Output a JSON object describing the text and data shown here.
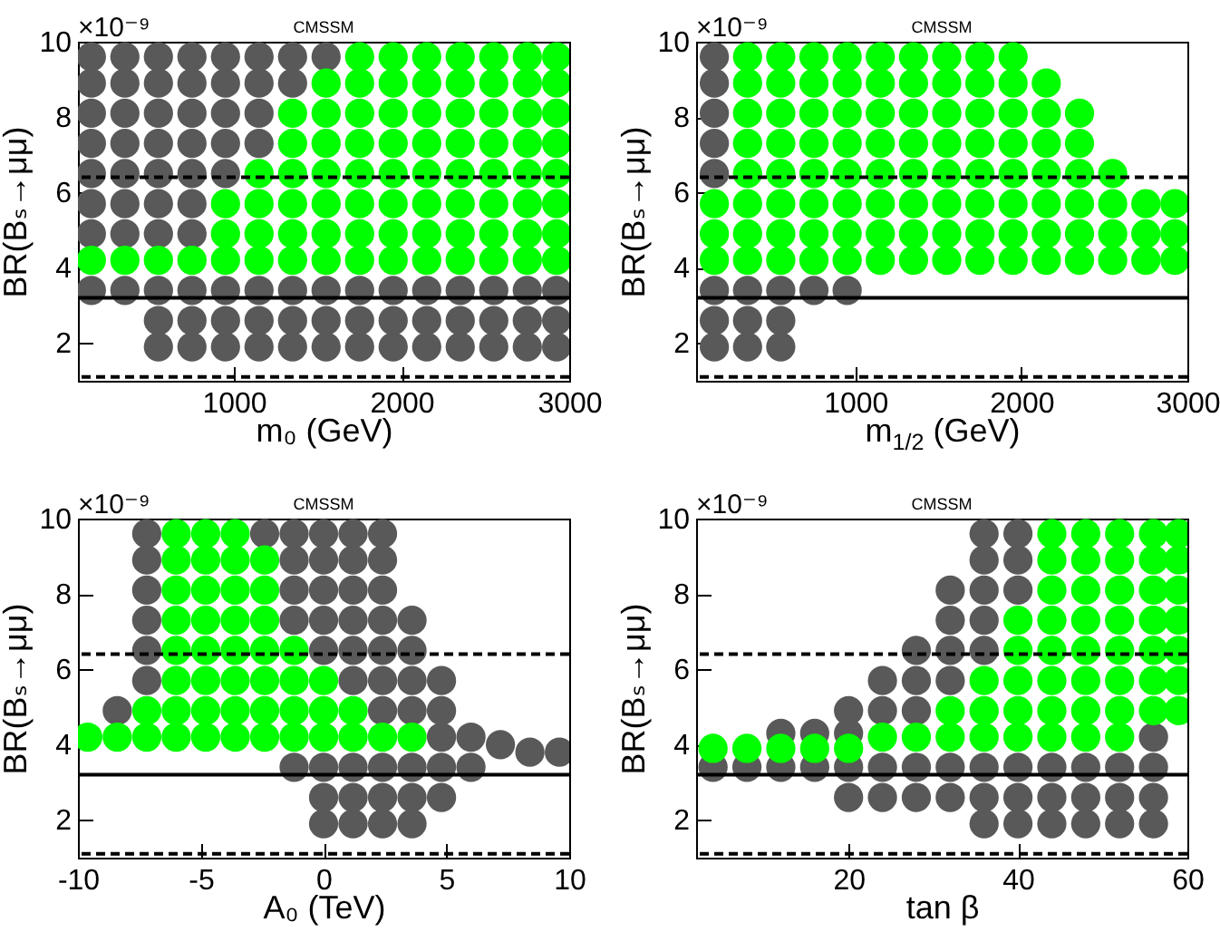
{
  "chart_data": [
    {
      "type": "scatter",
      "title": "CMSSM",
      "xlabel": "m₀ (GeV)",
      "ylabel": "BR(Bₛ→μμ)",
      "annotations": [
        "×10⁻⁹"
      ],
      "marker": "circle",
      "xlim": [
        70,
        3000
      ],
      "xticks": [
        1000,
        2000,
        3000
      ],
      "ylim": [
        1,
        10
      ],
      "yticks": [
        2,
        4,
        6,
        8,
        10
      ],
      "series": [
        {
          "color": "#595959",
          "x": [
            550,
            750,
            950,
            1150,
            1350,
            1550,
            1750,
            1950,
            2150,
            2350,
            2550,
            2750,
            2925,
            550,
            750,
            950,
            1150,
            1350,
            1550,
            1750,
            1950,
            2150,
            2350,
            2550,
            2750,
            2925,
            150,
            350,
            550,
            750,
            950,
            1150,
            1350,
            1550,
            1750,
            1950,
            2150,
            2350,
            2550,
            2750,
            2925,
            150,
            350,
            550,
            750,
            150,
            350,
            550,
            750,
            150,
            350,
            550,
            750,
            950,
            150,
            350,
            550,
            750,
            950,
            1150,
            150,
            350,
            550,
            750,
            950,
            1150,
            150,
            350,
            550,
            750,
            950,
            1150,
            1350,
            150,
            350,
            550,
            750,
            950,
            1150,
            1350,
            1550
          ],
          "values": [
            1.9,
            1.9,
            1.9,
            1.9,
            1.9,
            1.9,
            1.9,
            1.9,
            1.9,
            1.9,
            1.9,
            1.9,
            1.9,
            2.6,
            2.6,
            2.6,
            2.6,
            2.6,
            2.6,
            2.6,
            2.6,
            2.6,
            2.6,
            2.6,
            2.6,
            2.6,
            3.4,
            3.4,
            3.4,
            3.4,
            3.4,
            3.4,
            3.4,
            3.4,
            3.4,
            3.4,
            3.4,
            3.4,
            3.4,
            3.4,
            3.4,
            4.9,
            4.9,
            4.9,
            4.9,
            5.7,
            5.7,
            5.7,
            5.7,
            6.5,
            6.5,
            6.5,
            6.5,
            6.5,
            7.3,
            7.3,
            7.3,
            7.3,
            7.3,
            7.3,
            8.1,
            8.1,
            8.1,
            8.1,
            8.1,
            8.1,
            8.9,
            8.9,
            8.9,
            8.9,
            8.9,
            8.9,
            8.9,
            9.6,
            9.6,
            9.6,
            9.6,
            9.6,
            9.6,
            9.6,
            9.6
          ]
        },
        {
          "color": "#00ff00",
          "x": [
            150,
            350,
            550,
            750,
            950,
            1150,
            1350,
            1550,
            1750,
            1950,
            2150,
            2350,
            2550,
            2750,
            2925,
            950,
            1150,
            1350,
            1550,
            1750,
            1950,
            2150,
            2350,
            2550,
            2750,
            2925,
            950,
            1150,
            1350,
            1550,
            1750,
            1950,
            2150,
            2350,
            2550,
            2750,
            2925,
            1150,
            1350,
            1550,
            1750,
            1950,
            2150,
            2350,
            2550,
            2750,
            2925,
            1350,
            1550,
            1750,
            1950,
            2150,
            2350,
            2550,
            2750,
            2925,
            1350,
            1550,
            1750,
            1950,
            2150,
            2350,
            2550,
            2750,
            2925,
            1550,
            1750,
            1950,
            2150,
            2350,
            2550,
            2750,
            2925,
            1750,
            1950,
            2150,
            2350,
            2550,
            2750,
            2925
          ],
          "values": [
            4.2,
            4.2,
            4.2,
            4.2,
            4.2,
            4.2,
            4.2,
            4.2,
            4.2,
            4.2,
            4.2,
            4.2,
            4.2,
            4.2,
            4.2,
            4.9,
            4.9,
            4.9,
            4.9,
            4.9,
            4.9,
            4.9,
            4.9,
            4.9,
            4.9,
            4.9,
            5.7,
            5.7,
            5.7,
            5.7,
            5.7,
            5.7,
            5.7,
            5.7,
            5.7,
            5.7,
            5.7,
            6.5,
            6.5,
            6.5,
            6.5,
            6.5,
            6.5,
            6.5,
            6.5,
            6.5,
            6.5,
            7.3,
            7.3,
            7.3,
            7.3,
            7.3,
            7.3,
            7.3,
            7.3,
            7.3,
            8.1,
            8.1,
            8.1,
            8.1,
            8.1,
            8.1,
            8.1,
            8.1,
            8.1,
            8.9,
            8.9,
            8.9,
            8.9,
            8.9,
            8.9,
            8.9,
            8.9,
            9.6,
            9.6,
            9.6,
            9.6,
            9.6,
            9.6,
            9.6
          ]
        }
      ],
      "ref_lines": [
        {
          "axis": "y",
          "value": 6.4,
          "color": "#000000",
          "line_style": "dashed"
        },
        {
          "axis": "y",
          "value": 3.2,
          "color": "#000000",
          "line_style": "solid"
        },
        {
          "axis": "y",
          "value": 1.1,
          "color": "#000000",
          "line_style": "dashed"
        }
      ]
    },
    {
      "type": "scatter",
      "title": "CMSSM",
      "xlabel": "m$_{1/2}$ (GeV)",
      "ylabel": "BR(Bₛ→μμ)",
      "annotations": [
        "×10⁻⁹"
      ],
      "marker": "circle",
      "xlim": [
        40,
        3000
      ],
      "xticks": [
        1000,
        2000,
        3000
      ],
      "ylim": [
        1,
        10
      ],
      "yticks": [
        2,
        4,
        6,
        8,
        10
      ],
      "series": [
        {
          "color": "#595959",
          "x": [
            150,
            350,
            550,
            150,
            350,
            550,
            150,
            350,
            550,
            750,
            950,
            150,
            150,
            150,
            150,
            150
          ],
          "values": [
            1.9,
            1.9,
            1.9,
            2.6,
            2.6,
            2.6,
            3.4,
            3.4,
            3.4,
            3.4,
            3.4,
            6.5,
            7.3,
            8.1,
            8.9,
            9.6
          ]
        },
        {
          "color": "#00ff00",
          "x": [
            150,
            350,
            550,
            750,
            950,
            1150,
            1350,
            1550,
            1750,
            1950,
            2150,
            2350,
            2550,
            2750,
            2925,
            150,
            350,
            550,
            750,
            950,
            1150,
            1350,
            1550,
            1750,
            1950,
            2150,
            2350,
            2550,
            2750,
            2925,
            150,
            350,
            550,
            750,
            950,
            1150,
            1350,
            1550,
            1750,
            1950,
            2150,
            2350,
            2550,
            2750,
            2925,
            350,
            550,
            750,
            950,
            1150,
            1350,
            1550,
            1750,
            1950,
            2150,
            2350,
            2550,
            350,
            550,
            750,
            950,
            1150,
            1350,
            1550,
            1750,
            1950,
            2150,
            2350,
            350,
            550,
            750,
            950,
            1150,
            1350,
            1550,
            1750,
            1950,
            2150,
            2350,
            350,
            550,
            750,
            950,
            1150,
            1350,
            1550,
            1750,
            1950,
            2150,
            350,
            550,
            750,
            950,
            1150,
            1350,
            1550,
            1750,
            1950
          ],
          "values": [
            4.2,
            4.2,
            4.2,
            4.2,
            4.2,
            4.2,
            4.2,
            4.2,
            4.2,
            4.2,
            4.2,
            4.2,
            4.2,
            4.2,
            4.2,
            4.9,
            4.9,
            4.9,
            4.9,
            4.9,
            4.9,
            4.9,
            4.9,
            4.9,
            4.9,
            4.9,
            4.9,
            4.9,
            4.9,
            4.9,
            5.7,
            5.7,
            5.7,
            5.7,
            5.7,
            5.7,
            5.7,
            5.7,
            5.7,
            5.7,
            5.7,
            5.7,
            5.7,
            5.7,
            5.7,
            6.5,
            6.5,
            6.5,
            6.5,
            6.5,
            6.5,
            6.5,
            6.5,
            6.5,
            6.5,
            6.5,
            6.5,
            7.3,
            7.3,
            7.3,
            7.3,
            7.3,
            7.3,
            7.3,
            7.3,
            7.3,
            7.3,
            7.3,
            8.1,
            8.1,
            8.1,
            8.1,
            8.1,
            8.1,
            8.1,
            8.1,
            8.1,
            8.1,
            8.1,
            8.9,
            8.9,
            8.9,
            8.9,
            8.9,
            8.9,
            8.9,
            8.9,
            8.9,
            8.9,
            9.6,
            9.6,
            9.6,
            9.6,
            9.6,
            9.6,
            9.6,
            9.6,
            9.6
          ]
        }
      ],
      "ref_lines": [
        {
          "axis": "y",
          "value": 6.4,
          "color": "#000000",
          "line_style": "dashed"
        },
        {
          "axis": "y",
          "value": 3.2,
          "color": "#000000",
          "line_style": "solid"
        },
        {
          "axis": "y",
          "value": 1.1,
          "color": "#000000",
          "line_style": "dashed"
        }
      ]
    },
    {
      "type": "scatter",
      "title": "CMSSM",
      "xlabel": "A₀ (TeV)",
      "ylabel": "BR(Bₛ→μμ)",
      "annotations": [
        "×10⁻⁹"
      ],
      "marker": "circle",
      "xlim": [
        -10,
        10
      ],
      "xticks": [
        -10,
        -5,
        0,
        5,
        10
      ],
      "ylim": [
        1,
        10
      ],
      "yticks": [
        2,
        4,
        6,
        8,
        10
      ],
      "series": [
        {
          "color": "#595959",
          "x": [
            0,
            1.2,
            2.4,
            3.6,
            0,
            1.2,
            2.4,
            3.6,
            4.8,
            -1.2,
            0,
            1.2,
            2.4,
            3.6,
            4.8,
            6,
            8.4,
            9.6,
            7.2,
            4.8,
            6,
            -8.4,
            2.4,
            3.6,
            4.8,
            -7.2,
            1.2,
            2.4,
            3.6,
            4.8,
            -7.2,
            0,
            1.2,
            2.4,
            3.6,
            -7.2,
            -1.2,
            0,
            1.2,
            2.4,
            3.6,
            -7.2,
            -1.2,
            0,
            1.2,
            2.4,
            -7.2,
            -1.2,
            0,
            1.2,
            2.4,
            -7.2,
            -2.4,
            -1.2,
            0,
            1.2,
            2.4
          ],
          "values": [
            1.9,
            1.9,
            1.9,
            1.9,
            2.6,
            2.6,
            2.6,
            2.6,
            2.6,
            3.4,
            3.4,
            3.4,
            3.4,
            3.4,
            3.4,
            3.4,
            3.8,
            3.8,
            4.0,
            4.2,
            4.2,
            4.9,
            4.9,
            4.9,
            4.9,
            5.7,
            5.7,
            5.7,
            5.7,
            5.7,
            6.5,
            6.5,
            6.5,
            6.5,
            6.5,
            7.3,
            7.3,
            7.3,
            7.3,
            7.3,
            7.3,
            8.1,
            8.1,
            8.1,
            8.1,
            8.1,
            8.9,
            8.9,
            8.9,
            8.9,
            8.9,
            9.6,
            9.6,
            9.6,
            9.6,
            9.6,
            9.6
          ]
        },
        {
          "color": "#00ff00",
          "x": [
            -9.6,
            -8.4,
            -7.2,
            -6,
            -4.8,
            -3.6,
            -2.4,
            -1.2,
            0,
            1.2,
            2.4,
            3.6,
            -7.2,
            -6,
            -4.8,
            -3.6,
            -2.4,
            -1.2,
            0,
            1.2,
            -6,
            -4.8,
            -3.6,
            -2.4,
            -1.2,
            0,
            -6,
            -4.8,
            -3.6,
            -2.4,
            -1.2,
            -6,
            -4.8,
            -3.6,
            -2.4,
            -6,
            -4.8,
            -3.6,
            -2.4,
            -6,
            -4.8,
            -3.6,
            -2.4,
            -6,
            -4.8,
            -3.6
          ],
          "values": [
            4.2,
            4.2,
            4.2,
            4.2,
            4.2,
            4.2,
            4.2,
            4.2,
            4.2,
            4.2,
            4.2,
            4.2,
            4.9,
            4.9,
            4.9,
            4.9,
            4.9,
            4.9,
            4.9,
            4.9,
            5.7,
            5.7,
            5.7,
            5.7,
            5.7,
            5.7,
            6.5,
            6.5,
            6.5,
            6.5,
            6.5,
            7.3,
            7.3,
            7.3,
            7.3,
            8.1,
            8.1,
            8.1,
            8.1,
            8.9,
            8.9,
            8.9,
            8.9,
            9.6,
            9.6,
            9.6
          ]
        }
      ],
      "ref_lines": [
        {
          "axis": "y",
          "value": 6.4,
          "color": "#000000",
          "line_style": "dashed"
        },
        {
          "axis": "y",
          "value": 3.2,
          "color": "#000000",
          "line_style": "solid"
        },
        {
          "axis": "y",
          "value": 1.1,
          "color": "#000000",
          "line_style": "dashed"
        }
      ]
    },
    {
      "type": "scatter",
      "title": "CMSSM",
      "xlabel": "tan β",
      "ylabel": "BR(Bₛ→μμ)",
      "annotations": [
        "×10⁻⁹"
      ],
      "marker": "circle",
      "xlim": [
        2,
        60
      ],
      "xticks": [
        20,
        40,
        60
      ],
      "ylim": [
        1,
        10
      ],
      "yticks": [
        2,
        4,
        6,
        8,
        10
      ],
      "series": [
        {
          "color": "#595959",
          "x": [
            36,
            40,
            44,
            48,
            52,
            56,
            20,
            24,
            28,
            32,
            36,
            40,
            44,
            48,
            52,
            56,
            4,
            8,
            12,
            16,
            20,
            24,
            28,
            32,
            36,
            40,
            44,
            48,
            52,
            56,
            56,
            12,
            16,
            20,
            20,
            24,
            28,
            24,
            28,
            32,
            28,
            32,
            36,
            32,
            36,
            32,
            36,
            40,
            36,
            40,
            36,
            40
          ],
          "values": [
            1.9,
            1.9,
            1.9,
            1.9,
            1.9,
            1.9,
            2.6,
            2.6,
            2.6,
            2.6,
            2.6,
            2.6,
            2.6,
            2.6,
            2.6,
            2.6,
            3.4,
            3.4,
            3.4,
            3.4,
            3.4,
            3.4,
            3.4,
            3.4,
            3.4,
            3.4,
            3.4,
            3.4,
            3.4,
            3.4,
            4.2,
            4.3,
            4.3,
            4.3,
            4.9,
            4.9,
            4.9,
            5.7,
            5.7,
            5.7,
            6.5,
            6.5,
            6.5,
            7.3,
            7.3,
            8.1,
            8.1,
            8.1,
            8.9,
            8.9,
            9.6,
            9.6
          ]
        },
        {
          "color": "#00ff00",
          "x": [
            4,
            8,
            12,
            16,
            20,
            24,
            28,
            32,
            36,
            40,
            44,
            48,
            52,
            32,
            36,
            40,
            44,
            48,
            52,
            56,
            59,
            36,
            40,
            44,
            48,
            52,
            56,
            59,
            40,
            44,
            48,
            52,
            56,
            59,
            40,
            44,
            48,
            52,
            56,
            59,
            44,
            48,
            52,
            56,
            59,
            44,
            48,
            52,
            56,
            59,
            44,
            48,
            52,
            56,
            59
          ],
          "values": [
            3.9,
            3.9,
            3.9,
            3.9,
            3.9,
            4.2,
            4.2,
            4.2,
            4.2,
            4.2,
            4.2,
            4.2,
            4.2,
            4.9,
            4.9,
            4.9,
            4.9,
            4.9,
            4.9,
            4.9,
            4.9,
            5.7,
            5.7,
            5.7,
            5.7,
            5.7,
            5.7,
            5.7,
            6.5,
            6.5,
            6.5,
            6.5,
            6.5,
            6.5,
            7.3,
            7.3,
            7.3,
            7.3,
            7.3,
            7.3,
            8.1,
            8.1,
            8.1,
            8.1,
            8.1,
            8.9,
            8.9,
            8.9,
            8.9,
            8.9,
            9.6,
            9.6,
            9.6,
            9.6,
            9.6
          ]
        }
      ],
      "ref_lines": [
        {
          "axis": "y",
          "value": 6.4,
          "color": "#000000",
          "line_style": "dashed"
        },
        {
          "axis": "y",
          "value": 3.2,
          "color": "#000000",
          "line_style": "solid"
        },
        {
          "axis": "y",
          "value": 1.1,
          "color": "#000000",
          "line_style": "dashed"
        }
      ]
    }
  ]
}
